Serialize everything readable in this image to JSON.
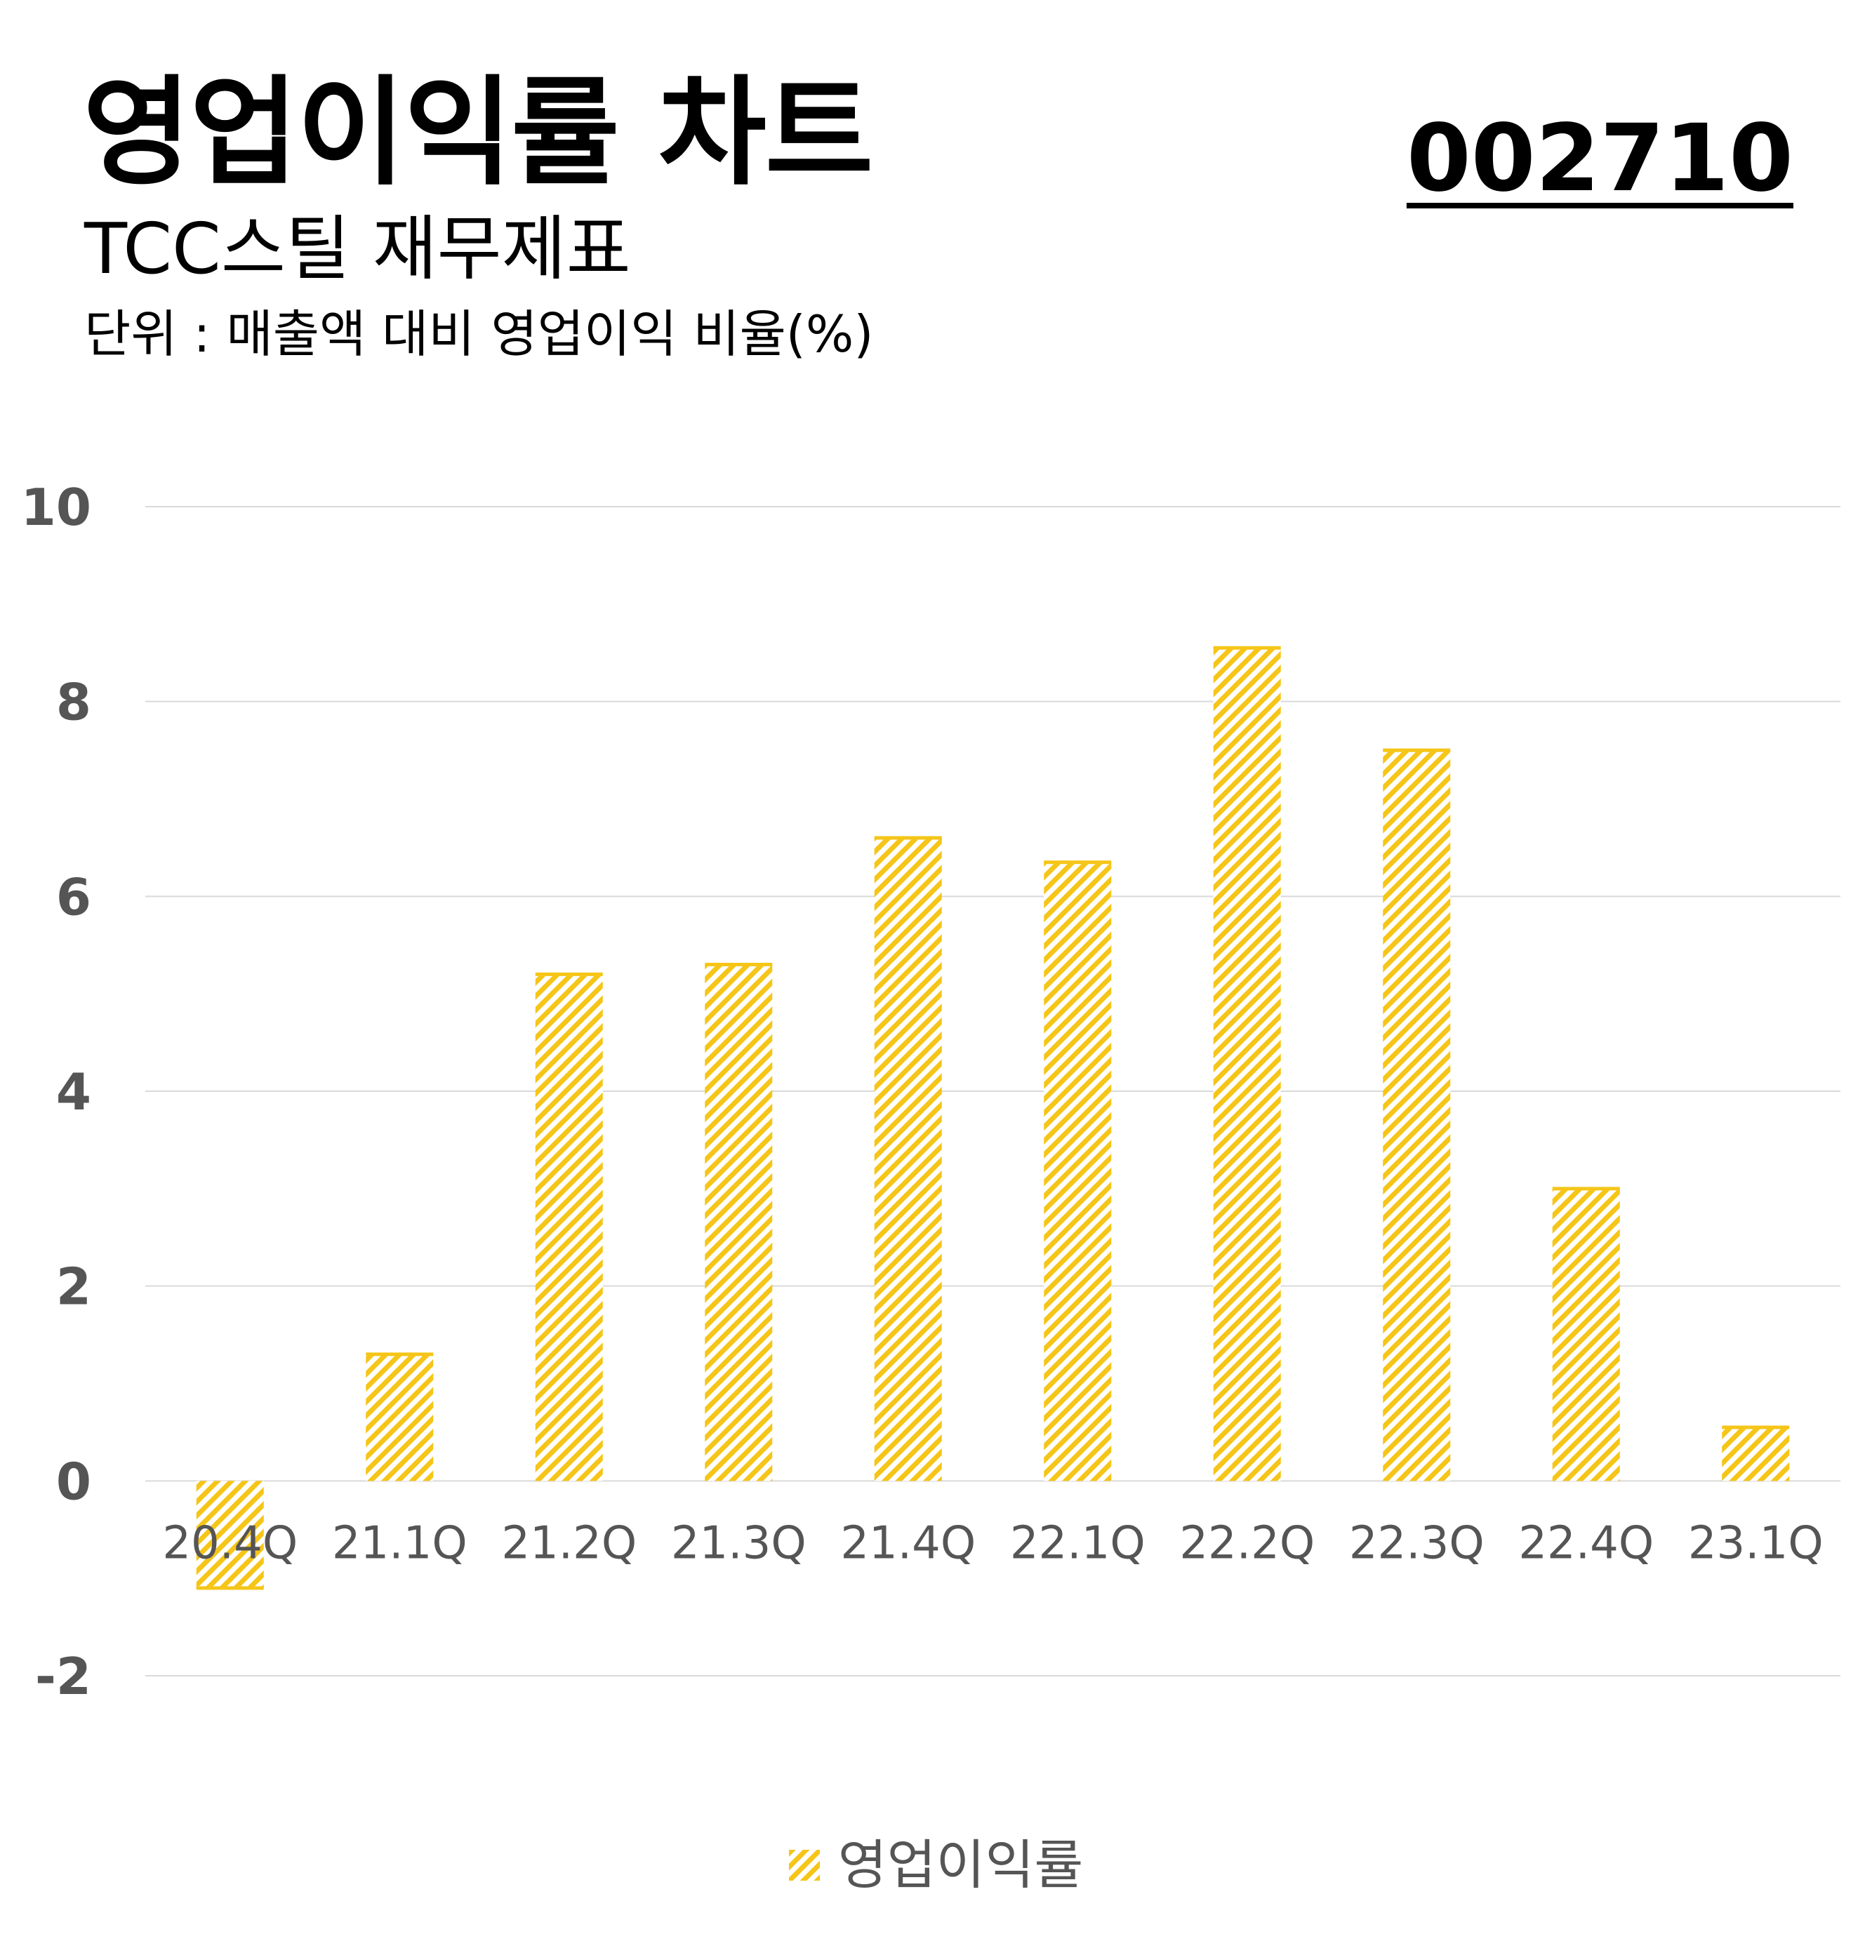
{
  "header": {
    "title": "영업이익률 차트",
    "code": "002710",
    "subtitle": "TCC스틸 재무제표",
    "unit": "단위 : 매출액 대비 영업이익 비율(%)"
  },
  "colors": {
    "bar": "#f5c518",
    "grid": "#d9d9d9",
    "tick_text": "#555555",
    "yaxis_text": "#555555"
  },
  "chart_data": {
    "type": "bar",
    "categories": [
      "20.4Q",
      "21.1Q",
      "21.2Q",
      "21.3Q",
      "21.4Q",
      "22.1Q",
      "22.2Q",
      "22.3Q",
      "22.4Q",
      "23.1Q"
    ],
    "series": [
      {
        "name": "영업이익률",
        "values": [
          -1.1,
          1.3,
          5.2,
          5.3,
          6.6,
          6.35,
          8.55,
          7.5,
          3.0,
          0.55
        ]
      }
    ],
    "yticks": [
      "10",
      "8",
      "6",
      "4",
      "2",
      "0",
      "-2"
    ],
    "ylim": [
      -2,
      10
    ],
    "grid": true,
    "legend_position": "bottom-center",
    "bar_fill": "diagonal-hatch"
  }
}
